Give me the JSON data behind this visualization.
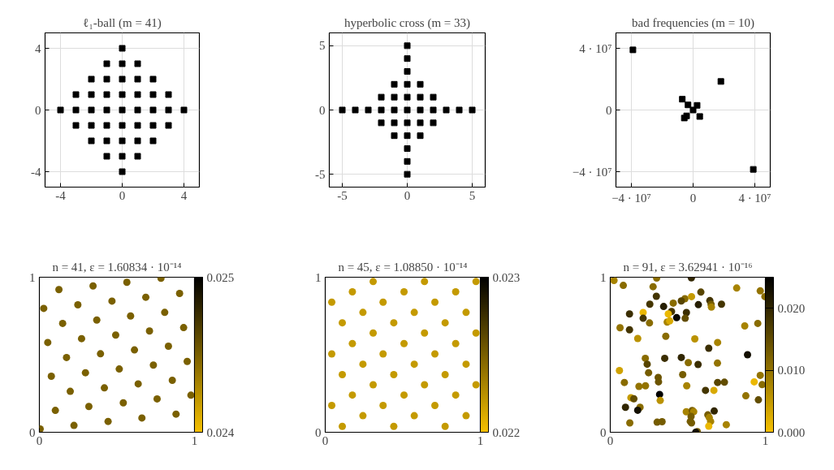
{
  "chart_data": [
    {
      "type": "scatter",
      "title": "ℓ₁-ball (m = 41)",
      "marker": "square",
      "color": "#000000",
      "grid": true,
      "x": [
        0,
        -1,
        0,
        1,
        -2,
        -1,
        0,
        1,
        2,
        -3,
        -2,
        -1,
        0,
        1,
        2,
        3,
        -4,
        -3,
        -2,
        -1,
        0,
        1,
        2,
        3,
        4,
        -3,
        -2,
        -1,
        0,
        1,
        2,
        3,
        -2,
        -1,
        0,
        1,
        2,
        -1,
        0,
        1,
        0
      ],
      "values": [
        4,
        3,
        3,
        3,
        2,
        2,
        2,
        2,
        2,
        1,
        1,
        1,
        1,
        1,
        1,
        1,
        0,
        0,
        0,
        0,
        0,
        0,
        0,
        0,
        0,
        -1,
        -1,
        -1,
        -1,
        -1,
        -1,
        -1,
        -2,
        -2,
        -2,
        -2,
        -2,
        -3,
        -3,
        -3,
        -4
      ],
      "xlim": [
        -5,
        5
      ],
      "ylim": [
        -5,
        5
      ],
      "xticks": [
        -4,
        0,
        4
      ],
      "yticks": [
        -4,
        0,
        4
      ]
    },
    {
      "type": "scatter",
      "title": "hyperbolic cross (m = 33)",
      "marker": "square",
      "color": "#000000",
      "grid": true,
      "x": [
        0,
        0,
        0,
        -1,
        0,
        1,
        -2,
        -1,
        0,
        1,
        2,
        -5,
        -4,
        -3,
        -2,
        -1,
        0,
        1,
        2,
        3,
        4,
        5,
        -2,
        -1,
        0,
        1,
        2,
        -1,
        0,
        1,
        0,
        0,
        0
      ],
      "values": [
        5,
        4,
        3,
        2,
        2,
        2,
        1,
        1,
        1,
        1,
        1,
        0,
        0,
        0,
        0,
        0,
        0,
        0,
        0,
        0,
        0,
        0,
        -1,
        -1,
        -1,
        -1,
        -1,
        -2,
        -2,
        -2,
        -3,
        -4,
        -5
      ],
      "xlim": [
        -6,
        6
      ],
      "ylim": [
        -6,
        6
      ],
      "xticks": [
        -5,
        0,
        5
      ],
      "yticks": [
        -5,
        0,
        5
      ]
    },
    {
      "type": "scatter",
      "title": "bad frequencies (m = 10)",
      "marker": "square",
      "color": "#000000",
      "grid": true,
      "x": [
        -39000000,
        18000000,
        -7000000,
        -3300000,
        2600000,
        0,
        -4200000,
        -5700000,
        4300000,
        39000000
      ],
      "values": [
        39000000,
        18500000,
        7000000,
        3300000,
        3000000,
        0,
        -3800000,
        -5200000,
        -4200000,
        -38500000
      ],
      "xlim": [
        -50000000,
        50000000
      ],
      "ylim": [
        -50000000,
        50000000
      ],
      "xticks": [
        {
          "value": -40000000,
          "label": "−4 · 10⁷"
        },
        0,
        {
          "value": 40000000,
          "label": "4 · 10⁷"
        }
      ],
      "yticks": [
        {
          "value": -40000000,
          "label": "−4 · 10⁷"
        },
        0,
        {
          "value": 40000000,
          "label": "4 · 10⁷"
        }
      ]
    },
    {
      "type": "scatter",
      "title": "n = 41, ε = 1.60834 · 10⁻¹⁴",
      "marker": "circle",
      "x": [
        0.005,
        0.028,
        0.054,
        0.077,
        0.103,
        0.126,
        0.15,
        0.175,
        0.199,
        0.223,
        0.248,
        0.272,
        0.297,
        0.319,
        0.346,
        0.37,
        0.394,
        0.419,
        0.443,
        0.468,
        0.492,
        0.515,
        0.541,
        0.564,
        0.588,
        0.613,
        0.637,
        0.661,
        0.686,
        0.71,
        0.735,
        0.759,
        0.784,
        0.808,
        0.832,
        0.857,
        0.881,
        0.904,
        0.93,
        0.953,
        0.977
      ],
      "values": [
        0.021,
        0.799,
        0.579,
        0.361,
        0.141,
        0.92,
        0.702,
        0.482,
        0.264,
        0.044,
        0.822,
        0.604,
        0.384,
        0.166,
        0.944,
        0.724,
        0.506,
        0.286,
        0.07,
        0.846,
        0.627,
        0.408,
        0.19,
        0.967,
        0.75,
        0.531,
        0.312,
        0.092,
        0.871,
        0.653,
        0.433,
        0.215,
        0.993,
        0.773,
        0.555,
        0.335,
        0.117,
        0.895,
        0.675,
        0.457,
        0.239
      ],
      "cvalues": [
        0.0245,
        0.0245,
        0.0245,
        0.0245,
        0.0245,
        0.0245,
        0.0245,
        0.0245,
        0.0245,
        0.0245,
        0.0245,
        0.0245,
        0.0245,
        0.0245,
        0.0245,
        0.0245,
        0.0245,
        0.0245,
        0.0245,
        0.0245,
        0.0245,
        0.0245,
        0.0245,
        0.0245,
        0.0245,
        0.0245,
        0.0245,
        0.0245,
        0.0245,
        0.0245,
        0.0245,
        0.0245,
        0.0245,
        0.0245,
        0.0245,
        0.0245,
        0.0245,
        0.0245,
        0.0245,
        0.0245,
        0.0245
      ],
      "xlim": [
        0,
        1
      ],
      "ylim": [
        0,
        1
      ],
      "xticks": [
        0,
        1
      ],
      "yticks": [
        0,
        1
      ],
      "clim": [
        0.024,
        0.025
      ],
      "cticks": [
        0.024,
        0.025
      ]
    },
    {
      "type": "scatter",
      "title": "n = 45, ε = 1.08850 · 10⁻¹⁴",
      "marker": "circle",
      "x": [
        0.309,
        0.64,
        0.972,
        0.175,
        0.508,
        0.841,
        0.042,
        0.373,
        0.707,
        0.243,
        0.574,
        0.908,
        0.11,
        0.442,
        0.773,
        0.309,
        0.64,
        0.972,
        0.175,
        0.508,
        0.841,
        0.042,
        0.373,
        0.707,
        0.243,
        0.574,
        0.908,
        0.11,
        0.442,
        0.773,
        0.309,
        0.64,
        0.972,
        0.175,
        0.508,
        0.841,
        0.042,
        0.373,
        0.707,
        0.243,
        0.574,
        0.908,
        0.11,
        0.442,
        0.773
      ],
      "values": [
        0.972,
        0.972,
        0.972,
        0.906,
        0.906,
        0.906,
        0.839,
        0.839,
        0.839,
        0.773,
        0.773,
        0.773,
        0.706,
        0.706,
        0.706,
        0.64,
        0.64,
        0.64,
        0.572,
        0.572,
        0.572,
        0.505,
        0.505,
        0.505,
        0.439,
        0.439,
        0.439,
        0.372,
        0.372,
        0.372,
        0.306,
        0.306,
        0.306,
        0.24,
        0.24,
        0.24,
        0.173,
        0.173,
        0.173,
        0.107,
        0.107,
        0.107,
        0.038,
        0.038,
        0.038
      ],
      "cvalues": [
        0.0222,
        0.0222,
        0.0222,
        0.0222,
        0.0222,
        0.0222,
        0.0222,
        0.0222,
        0.0222,
        0.0222,
        0.0222,
        0.0222,
        0.0222,
        0.0222,
        0.0222,
        0.0222,
        0.0222,
        0.0222,
        0.0222,
        0.0222,
        0.0222,
        0.0222,
        0.0222,
        0.0222,
        0.0222,
        0.0222,
        0.0222,
        0.0222,
        0.0222,
        0.0222,
        0.0222,
        0.0222,
        0.0222,
        0.0222,
        0.0222,
        0.0222,
        0.0222,
        0.0222,
        0.0222,
        0.0222,
        0.0222,
        0.0222,
        0.0222,
        0.0222,
        0.0222
      ],
      "xlim": [
        0,
        1
      ],
      "ylim": [
        0,
        1
      ],
      "xticks": [
        0,
        1
      ],
      "yticks": [
        0,
        1
      ],
      "clim": [
        0.022,
        0.023
      ],
      "cticks": [
        0.022,
        0.023
      ]
    },
    {
      "type": "scatter",
      "title": "n = 91, ε = 3.62941 · 10⁻¹⁶",
      "marker": "circle",
      "x": [
        0.024,
        0.299,
        0.523,
        0.084,
        0.276,
        0.815,
        0.967,
        0.584,
        0.297,
        0.997,
        0.481,
        0.524,
        0.406,
        0.458,
        0.255,
        0.642,
        0.65,
        0.652,
        0.717,
        0.568,
        0.344,
        0.124,
        0.212,
        0.395,
        0.491,
        0.374,
        0.428,
        0.212,
        0.253,
        0.367,
        0.383,
        0.483,
        0.063,
        0.124,
        0.867,
        0.951,
        0.177,
        0.358,
        0.545,
        0.692,
        0.635,
        0.885,
        0.226,
        0.351,
        0.458,
        0.238,
        0.503,
        0.566,
        0.691,
        0.059,
        0.247,
        0.467,
        0.309,
        0.311,
        0.091,
        0.185,
        0.227,
        0.493,
        0.692,
        0.736,
        0.967,
        0.928,
        0.979,
        0.318,
        0.322,
        0.614,
        0.668,
        0.133,
        0.152,
        0.874,
        0.955,
        0.098,
        0.192,
        0.177,
        0.49,
        0.528,
        0.538,
        0.521,
        0.67,
        0.629,
        0.638,
        0.647,
        0.126,
        0.302,
        0.334,
        0.516,
        0.524,
        0.635,
        0.748,
        0.561,
        0.551
      ],
      "values": [
        0.979,
        0.995,
        0.996,
        0.947,
        0.939,
        0.93,
        0.912,
        0.904,
        0.877,
        0.875,
        0.861,
        0.875,
        0.833,
        0.847,
        0.826,
        0.849,
        0.825,
        0.807,
        0.826,
        0.823,
        0.811,
        0.763,
        0.772,
        0.779,
        0.772,
        0.763,
        0.739,
        0.735,
        0.705,
        0.711,
        0.718,
        0.735,
        0.674,
        0.661,
        0.686,
        0.702,
        0.605,
        0.619,
        0.602,
        0.579,
        0.542,
        0.5,
        0.477,
        0.477,
        0.482,
        0.439,
        0.449,
        0.437,
        0.446,
        0.398,
        0.384,
        0.372,
        0.354,
        0.325,
        0.321,
        0.296,
        0.3,
        0.3,
        0.321,
        0.323,
        0.367,
        0.325,
        0.307,
        0.244,
        0.205,
        0.27,
        0.27,
        0.223,
        0.216,
        0.235,
        0.209,
        0.161,
        0.161,
        0.142,
        0.132,
        0.14,
        0.133,
        0.102,
        0.137,
        0.112,
        0.095,
        0.07,
        0.06,
        0.065,
        0.068,
        0.07,
        0.06,
        0.039,
        0.049,
        0.004,
        0.0
      ],
      "cvalues": [
        0.008,
        0.011,
        0.02,
        0.011,
        0.011,
        0.008,
        0.01,
        0.016,
        0.018,
        0.011,
        0.011,
        0.005,
        0.011,
        0.016,
        0.018,
        0.018,
        0.013,
        0.008,
        0.018,
        0.021,
        0.021,
        0.019,
        0.001,
        0.018,
        0.019,
        0.001,
        0.024,
        0.018,
        0.011,
        0.008,
        0.003,
        0.015,
        0.01,
        0.018,
        0.008,
        0.011,
        0.006,
        0.011,
        0.006,
        0.008,
        0.019,
        0.023,
        0.011,
        0.019,
        0.02,
        0.016,
        0.011,
        0.019,
        0.01,
        0.004,
        0.013,
        0.013,
        0.014,
        0.014,
        0.011,
        0.01,
        0.01,
        0.008,
        0.016,
        0.015,
        0.01,
        0.001,
        0.011,
        0.025,
        0.006,
        0.018,
        0.003,
        0.005,
        0.015,
        0.01,
        0.015,
        0.02,
        0.011,
        0.023,
        0.008,
        0.013,
        0.008,
        0.013,
        0.02,
        0.013,
        0.008,
        0.008,
        0.011,
        0.013,
        0.013,
        0.013,
        0.013,
        0.001,
        0.008,
        0.013,
        0.023
      ],
      "xlim": [
        0,
        1
      ],
      "ylim": [
        0,
        1
      ],
      "xticks": [
        0,
        1
      ],
      "yticks": [
        0,
        1
      ],
      "clim": [
        0,
        0.025
      ],
      "cticks": [
        {
          "value": 0,
          "label": "0.000"
        },
        {
          "value": 0.01,
          "label": "0.010"
        },
        {
          "value": 0.02,
          "label": "0.020"
        }
      ]
    }
  ]
}
